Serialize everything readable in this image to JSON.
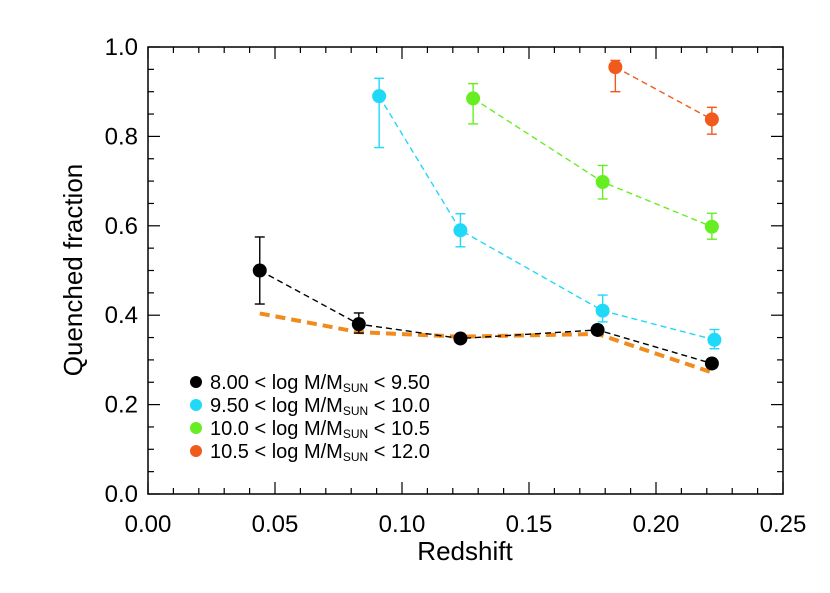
{
  "chart_data": {
    "type": "scatter",
    "title": "",
    "xlabel": "Redshift",
    "ylabel": "Quenched fraction",
    "xlim": [
      0.0,
      0.25
    ],
    "ylim": [
      0.0,
      1.0
    ],
    "xticks": [
      "0.00",
      "0.05",
      "0.10",
      "0.15",
      "0.20",
      "0.25"
    ],
    "yticks": [
      "0.0",
      "0.2",
      "0.4",
      "0.6",
      "0.8",
      "1.0"
    ],
    "grid": false,
    "legend_position": "bottom-left",
    "series": [
      {
        "name_parts": [
          "8.00 < log M/M",
          "SUN",
          " < 9.50"
        ],
        "color": "#000000",
        "points": [
          {
            "x": 0.044,
            "y": 0.5,
            "lo": 0.425,
            "hi": 0.575
          },
          {
            "x": 0.083,
            "y": 0.38,
            "lo": 0.36,
            "hi": 0.405
          },
          {
            "x": 0.123,
            "y": 0.348,
            "lo": 0.343,
            "hi": 0.353
          },
          {
            "x": 0.177,
            "y": 0.367,
            "lo": 0.357,
            "hi": 0.377
          },
          {
            "x": 0.222,
            "y": 0.292,
            "lo": 0.282,
            "hi": 0.302
          }
        ]
      },
      {
        "name_parts": [
          "9.50 < log M/M",
          "SUN",
          " < 10.0"
        ],
        "color": "#20d8f8",
        "points": [
          {
            "x": 0.091,
            "y": 0.89,
            "lo": 0.775,
            "hi": 0.93
          },
          {
            "x": 0.123,
            "y": 0.59,
            "lo": 0.553,
            "hi": 0.627
          },
          {
            "x": 0.179,
            "y": 0.41,
            "lo": 0.385,
            "hi": 0.445
          },
          {
            "x": 0.223,
            "y": 0.345,
            "lo": 0.325,
            "hi": 0.368
          }
        ]
      },
      {
        "name_parts": [
          "10.0 < log M/M",
          "SUN",
          " < 10.5"
        ],
        "color": "#66ee22",
        "points": [
          {
            "x": 0.128,
            "y": 0.885,
            "lo": 0.828,
            "hi": 0.918
          },
          {
            "x": 0.179,
            "y": 0.698,
            "lo": 0.66,
            "hi": 0.735
          },
          {
            "x": 0.222,
            "y": 0.598,
            "lo": 0.57,
            "hi": 0.628
          }
        ]
      },
      {
        "name_parts": [
          "10.5 < log M/M",
          "SUN",
          " < 12.0"
        ],
        "color": "#f05a1c",
        "points": [
          {
            "x": 0.184,
            "y": 0.955,
            "lo": 0.9,
            "hi": 0.97
          },
          {
            "x": 0.222,
            "y": 0.838,
            "lo": 0.805,
            "hi": 0.865
          }
        ]
      }
    ],
    "reference_curve": {
      "color": "#f08c1e",
      "x": [
        0.044,
        0.083,
        0.123,
        0.177,
        0.222
      ],
      "y": [
        0.404,
        0.362,
        0.352,
        0.358,
        0.272
      ]
    }
  }
}
